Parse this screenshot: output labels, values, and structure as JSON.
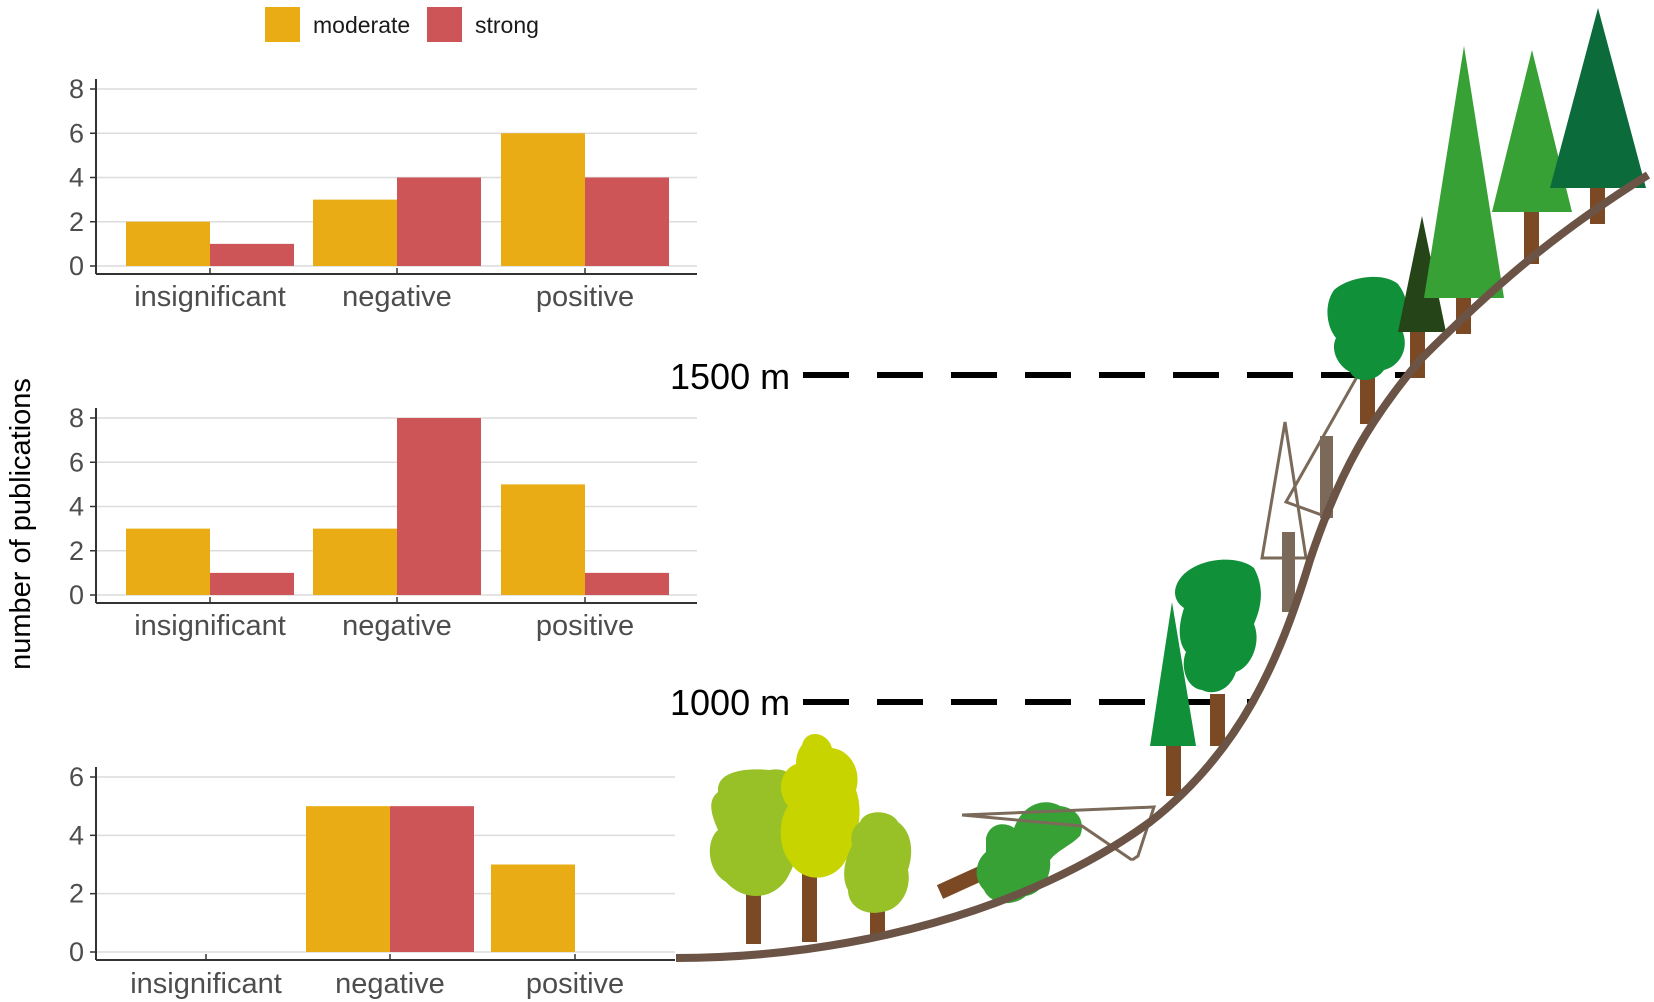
{
  "legend": {
    "entries": [
      {
        "label": "moderate",
        "color": "#EAAC14"
      },
      {
        "label": "strong",
        "color": "#CD5558"
      }
    ]
  },
  "y_axis_label": "number of publications",
  "elevations": {
    "upper": "1500 m",
    "lower": "1000 m"
  },
  "chart_data": [
    {
      "type": "bar",
      "categories": [
        "insignificant",
        "negative",
        "positive"
      ],
      "series": [
        {
          "name": "moderate",
          "values": [
            2,
            3,
            6
          ]
        },
        {
          "name": "strong",
          "values": [
            1,
            4,
            4
          ]
        }
      ],
      "ylim": [
        0,
        8
      ],
      "yticks": [
        0,
        2,
        4,
        6,
        8
      ],
      "ylabel": "number of publications",
      "grid": true
    },
    {
      "type": "bar",
      "categories": [
        "insignificant",
        "negative",
        "positive"
      ],
      "series": [
        {
          "name": "moderate",
          "values": [
            3,
            3,
            5
          ]
        },
        {
          "name": "strong",
          "values": [
            1,
            8,
            1
          ]
        }
      ],
      "ylim": [
        0,
        8
      ],
      "yticks": [
        0,
        2,
        4,
        6,
        8
      ],
      "ylabel": "number of publications",
      "grid": true
    },
    {
      "type": "bar",
      "categories": [
        "insignificant",
        "negative",
        "positive"
      ],
      "series": [
        {
          "name": "moderate",
          "values": [
            0,
            5,
            3
          ]
        },
        {
          "name": "strong",
          "values": [
            0,
            5,
            0
          ]
        }
      ],
      "ylim": [
        0,
        6
      ],
      "yticks": [
        0,
        2,
        4,
        6
      ],
      "ylabel": "number of publications",
      "grid": true
    }
  ]
}
